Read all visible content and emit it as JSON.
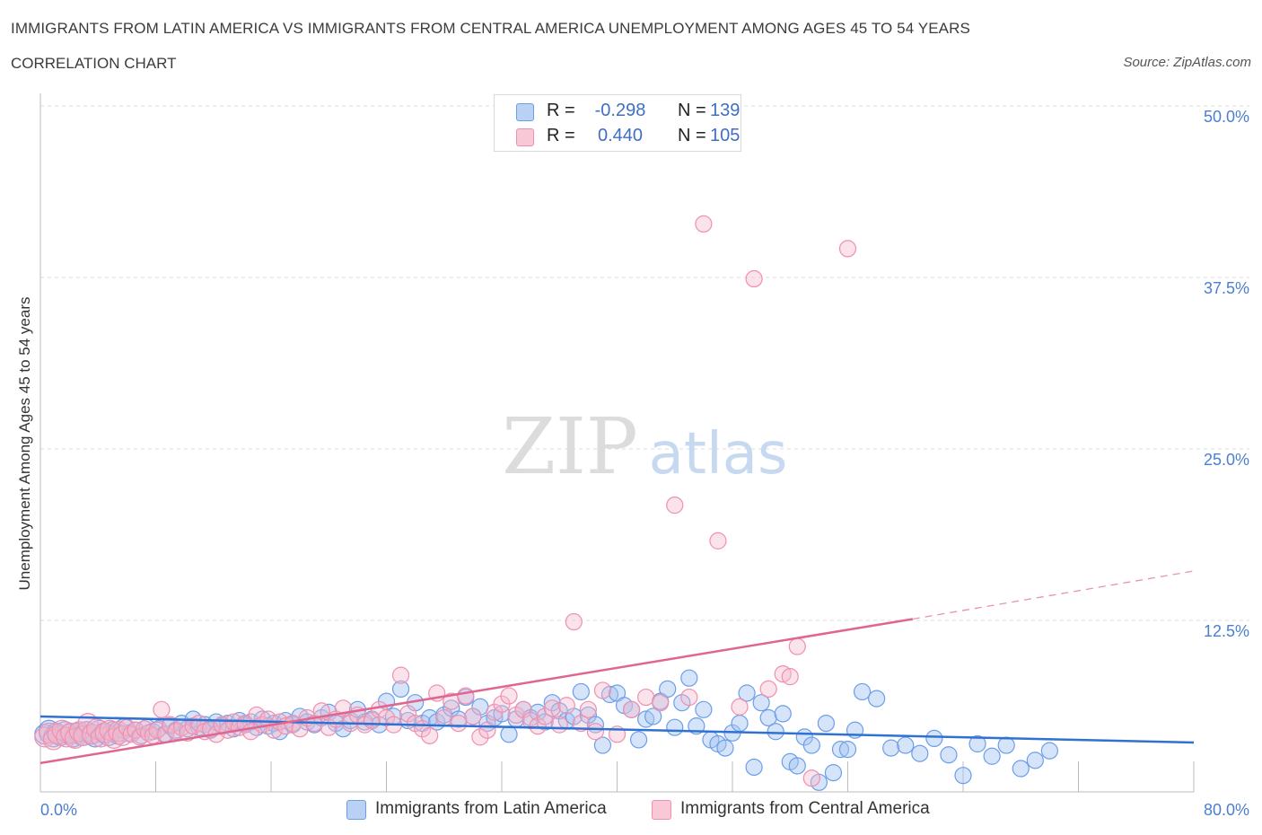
{
  "header": {
    "title": "IMMIGRANTS FROM LATIN AMERICA VS IMMIGRANTS FROM CENTRAL AMERICA UNEMPLOYMENT AMONG AGES 45 TO 54 YEARS",
    "subtitle": "CORRELATION CHART",
    "source": "Source: ZipAtlas.com"
  },
  "watermark": {
    "zip": "ZIP",
    "atlas": "atlas"
  },
  "legend": {
    "r_label": "R =",
    "n_label": "N =",
    "rows": [
      {
        "series": "Immigrants from Latin America",
        "r": "-0.298",
        "n": "139",
        "color": "#6b9ee8"
      },
      {
        "series": "Immigrants from Central America",
        "r": "0.440",
        "n": "105",
        "color": "#f08fae"
      }
    ]
  },
  "chart_data": {
    "type": "scatter",
    "title": "IMMIGRANTS FROM LATIN AMERICA VS IMMIGRANTS FROM CENTRAL AMERICA UNEMPLOYMENT AMONG AGES 45 TO 54 YEARS",
    "subtitle": "CORRELATION CHART",
    "xlabel": "",
    "ylabel": "Unemployment Among Ages 45 to 54 years",
    "xlim": [
      0,
      80
    ],
    "ylim": [
      0,
      50
    ],
    "x_tick_labels": [
      "0.0%",
      "80.0%"
    ],
    "y_ticks": [
      12.5,
      25.0,
      37.5,
      50.0
    ],
    "y_tick_labels": [
      "12.5%",
      "25.0%",
      "37.5%",
      "50.0%"
    ],
    "grid": true,
    "legend_position": "top-center and bottom",
    "series": [
      {
        "name": "Immigrants from Latin America",
        "color": "#6b9ee8",
        "r": -0.298,
        "n": 139,
        "trend": {
          "x": [
            0,
            80
          ],
          "y": [
            5.5,
            3.6
          ]
        },
        "points": [
          [
            0.3,
            4.2
          ],
          [
            0.6,
            4.5
          ],
          [
            0.9,
            4.0
          ],
          [
            1.1,
            4.3
          ],
          [
            1.4,
            4.1
          ],
          [
            1.7,
            4.4
          ],
          [
            2.0,
            4.2
          ],
          [
            2.3,
            4.0
          ],
          [
            2.6,
            4.3
          ],
          [
            2.9,
            4.1
          ],
          [
            3.2,
            4.4
          ],
          [
            3.5,
            4.2
          ],
          [
            3.8,
            4.0
          ],
          [
            4.1,
            4.5
          ],
          [
            4.4,
            4.3
          ],
          [
            4.7,
            4.1
          ],
          [
            5.0,
            4.4
          ],
          [
            5.4,
            4.2
          ],
          [
            5.8,
            4.6
          ],
          [
            6.2,
            4.3
          ],
          [
            6.6,
            4.5
          ],
          [
            7.0,
            4.1
          ],
          [
            7.4,
            4.7
          ],
          [
            7.8,
            4.4
          ],
          [
            8.2,
            4.6
          ],
          [
            8.6,
            4.2
          ],
          [
            9.0,
            4.8
          ],
          [
            9.4,
            4.5
          ],
          [
            9.8,
            5.0
          ],
          [
            10.2,
            4.6
          ],
          [
            10.6,
            5.3
          ],
          [
            11.0,
            4.7
          ],
          [
            11.4,
            4.9
          ],
          [
            11.8,
            4.5
          ],
          [
            12.2,
            5.1
          ],
          [
            12.6,
            4.8
          ],
          [
            13.0,
            5.0
          ],
          [
            13.4,
            4.6
          ],
          [
            13.8,
            5.2
          ],
          [
            14.2,
            4.9
          ],
          [
            14.6,
            5.1
          ],
          [
            15.0,
            4.7
          ],
          [
            15.4,
            5.3
          ],
          [
            15.8,
            4.8
          ],
          [
            16.2,
            5.0
          ],
          [
            16.6,
            4.4
          ],
          [
            17.0,
            5.2
          ],
          [
            17.5,
            4.9
          ],
          [
            18.0,
            5.5
          ],
          [
            18.5,
            5.1
          ],
          [
            19.0,
            4.9
          ],
          [
            19.5,
            5.4
          ],
          [
            20.0,
            5.8
          ],
          [
            20.5,
            5.0
          ],
          [
            21.0,
            4.6
          ],
          [
            21.5,
            5.2
          ],
          [
            22.0,
            6.0
          ],
          [
            22.5,
            5.1
          ],
          [
            23.0,
            5.3
          ],
          [
            23.5,
            4.9
          ],
          [
            24.0,
            6.6
          ],
          [
            24.5,
            5.5
          ],
          [
            25.0,
            7.5
          ],
          [
            25.5,
            5.2
          ],
          [
            26.0,
            6.5
          ],
          [
            26.5,
            5.0
          ],
          [
            27.0,
            5.4
          ],
          [
            27.5,
            5.1
          ],
          [
            28.0,
            5.6
          ],
          [
            28.5,
            6.1
          ],
          [
            29.0,
            5.3
          ],
          [
            29.5,
            6.9
          ],
          [
            30.0,
            5.5
          ],
          [
            30.5,
            6.2
          ],
          [
            31.0,
            5.0
          ],
          [
            31.5,
            5.4
          ],
          [
            32.0,
            5.7
          ],
          [
            32.5,
            4.2
          ],
          [
            33.0,
            5.3
          ],
          [
            33.5,
            6.0
          ],
          [
            34.0,
            5.4
          ],
          [
            34.5,
            5.8
          ],
          [
            35.0,
            5.1
          ],
          [
            35.5,
            6.5
          ],
          [
            36.0,
            5.9
          ],
          [
            36.5,
            5.2
          ],
          [
            37.0,
            5.5
          ],
          [
            37.5,
            7.3
          ],
          [
            38.0,
            5.6
          ],
          [
            38.5,
            4.9
          ],
          [
            39.0,
            3.4
          ],
          [
            39.5,
            7.1
          ],
          [
            40.0,
            7.2
          ],
          [
            40.5,
            6.3
          ],
          [
            41.0,
            6.0
          ],
          [
            41.5,
            3.8
          ],
          [
            42.0,
            5.3
          ],
          [
            42.5,
            5.5
          ],
          [
            43.0,
            6.6
          ],
          [
            43.5,
            7.5
          ],
          [
            44.0,
            4.7
          ],
          [
            44.5,
            6.5
          ],
          [
            45.0,
            8.3
          ],
          [
            45.5,
            4.8
          ],
          [
            46.0,
            6.0
          ],
          [
            46.5,
            3.8
          ],
          [
            47.0,
            3.5
          ],
          [
            47.5,
            3.2
          ],
          [
            48.0,
            4.3
          ],
          [
            48.5,
            5.0
          ],
          [
            49.0,
            7.2
          ],
          [
            49.5,
            1.8
          ],
          [
            50.0,
            6.5
          ],
          [
            50.5,
            5.4
          ],
          [
            51.0,
            4.4
          ],
          [
            51.5,
            5.7
          ],
          [
            52.0,
            2.2
          ],
          [
            52.5,
            1.9
          ],
          [
            53.0,
            4.0
          ],
          [
            53.5,
            3.4
          ],
          [
            54.0,
            0.7
          ],
          [
            54.5,
            5.0
          ],
          [
            55.0,
            1.4
          ],
          [
            55.5,
            3.1
          ],
          [
            56.0,
            3.1
          ],
          [
            56.5,
            4.5
          ],
          [
            57.0,
            7.3
          ],
          [
            58.0,
            6.8
          ],
          [
            59.0,
            3.2
          ],
          [
            60.0,
            3.4
          ],
          [
            61.0,
            2.8
          ],
          [
            62.0,
            3.9
          ],
          [
            63.0,
            2.7
          ],
          [
            64.0,
            1.2
          ],
          [
            65.0,
            3.5
          ],
          [
            66.0,
            2.6
          ],
          [
            67.0,
            3.4
          ],
          [
            68.0,
            1.7
          ],
          [
            69.0,
            2.3
          ],
          [
            70.0,
            3.0
          ]
        ]
      },
      {
        "name": "Immigrants from Central America",
        "color": "#f08fae",
        "r": 0.44,
        "n": 105,
        "trend": {
          "x": [
            0,
            60.5
          ],
          "y": [
            2.1,
            12.6
          ]
        },
        "trend_extension": {
          "x": [
            60.5,
            80
          ],
          "y": [
            12.6,
            16.1
          ]
        },
        "points": [
          [
            0.3,
            4.0
          ],
          [
            0.6,
            4.3
          ],
          [
            0.9,
            3.8
          ],
          [
            1.2,
            4.2
          ],
          [
            1.5,
            4.5
          ],
          [
            1.8,
            4.0
          ],
          [
            2.1,
            4.3
          ],
          [
            2.4,
            3.9
          ],
          [
            2.7,
            4.4
          ],
          [
            3.0,
            4.1
          ],
          [
            3.3,
            5.0
          ],
          [
            3.6,
            4.2
          ],
          [
            3.9,
            4.6
          ],
          [
            4.2,
            4.0
          ],
          [
            4.5,
            4.3
          ],
          [
            4.8,
            4.5
          ],
          [
            5.1,
            3.9
          ],
          [
            5.4,
            4.4
          ],
          [
            5.7,
            4.1
          ],
          [
            6.0,
            4.7
          ],
          [
            6.3,
            4.2
          ],
          [
            6.6,
            4.5
          ],
          [
            6.9,
            4.0
          ],
          [
            7.2,
            4.6
          ],
          [
            7.5,
            4.3
          ],
          [
            7.8,
            4.1
          ],
          [
            8.1,
            4.5
          ],
          [
            8.4,
            6.0
          ],
          [
            8.7,
            4.2
          ],
          [
            9.0,
            4.9
          ],
          [
            9.4,
            4.4
          ],
          [
            9.8,
            4.7
          ],
          [
            10.2,
            4.3
          ],
          [
            10.6,
            4.8
          ],
          [
            11.0,
            5.0
          ],
          [
            11.4,
            4.4
          ],
          [
            11.8,
            4.6
          ],
          [
            12.2,
            4.2
          ],
          [
            12.6,
            4.9
          ],
          [
            13.0,
            4.5
          ],
          [
            13.4,
            5.1
          ],
          [
            13.8,
            4.7
          ],
          [
            14.2,
            5.0
          ],
          [
            14.6,
            4.4
          ],
          [
            15.0,
            5.6
          ],
          [
            15.4,
            4.9
          ],
          [
            15.8,
            5.3
          ],
          [
            16.2,
            4.5
          ],
          [
            16.6,
            5.1
          ],
          [
            17.0,
            4.8
          ],
          [
            17.5,
            5.0
          ],
          [
            18.0,
            4.6
          ],
          [
            18.5,
            5.4
          ],
          [
            19.0,
            5.0
          ],
          [
            19.5,
            5.9
          ],
          [
            20.0,
            4.7
          ],
          [
            20.5,
            5.3
          ],
          [
            21.0,
            6.1
          ],
          [
            21.5,
            5.0
          ],
          [
            22.0,
            5.6
          ],
          [
            22.5,
            4.9
          ],
          [
            23.0,
            5.2
          ],
          [
            23.5,
            6.0
          ],
          [
            24.0,
            5.4
          ],
          [
            24.5,
            4.9
          ],
          [
            25.0,
            8.5
          ],
          [
            25.5,
            5.7
          ],
          [
            26.0,
            5.0
          ],
          [
            26.5,
            4.6
          ],
          [
            27.0,
            4.1
          ],
          [
            27.5,
            7.2
          ],
          [
            28.0,
            5.4
          ],
          [
            28.5,
            6.6
          ],
          [
            29.0,
            5.0
          ],
          [
            29.5,
            7.0
          ],
          [
            30.0,
            5.5
          ],
          [
            30.5,
            4.0
          ],
          [
            31.0,
            4.5
          ],
          [
            31.5,
            5.8
          ],
          [
            32.0,
            6.4
          ],
          [
            32.5,
            7.0
          ],
          [
            33.0,
            5.6
          ],
          [
            33.5,
            6.0
          ],
          [
            34.0,
            5.2
          ],
          [
            34.5,
            4.8
          ],
          [
            35.0,
            5.5
          ],
          [
            35.5,
            6.1
          ],
          [
            36.0,
            4.9
          ],
          [
            36.5,
            6.3
          ],
          [
            37.0,
            12.4
          ],
          [
            37.5,
            5.0
          ],
          [
            38.0,
            6.0
          ],
          [
            38.5,
            4.4
          ],
          [
            39.0,
            7.4
          ],
          [
            40.0,
            4.2
          ],
          [
            41.0,
            6.0
          ],
          [
            42.0,
            6.9
          ],
          [
            43.0,
            6.5
          ],
          [
            44.0,
            20.9
          ],
          [
            45.0,
            6.9
          ],
          [
            46.0,
            41.4
          ],
          [
            47.0,
            18.3
          ],
          [
            48.5,
            6.2
          ],
          [
            49.5,
            37.4
          ],
          [
            50.5,
            7.5
          ],
          [
            51.5,
            8.6
          ],
          [
            52.0,
            8.4
          ],
          [
            52.5,
            10.6
          ],
          [
            53.5,
            1.0
          ],
          [
            56.0,
            39.6
          ]
        ]
      }
    ]
  }
}
